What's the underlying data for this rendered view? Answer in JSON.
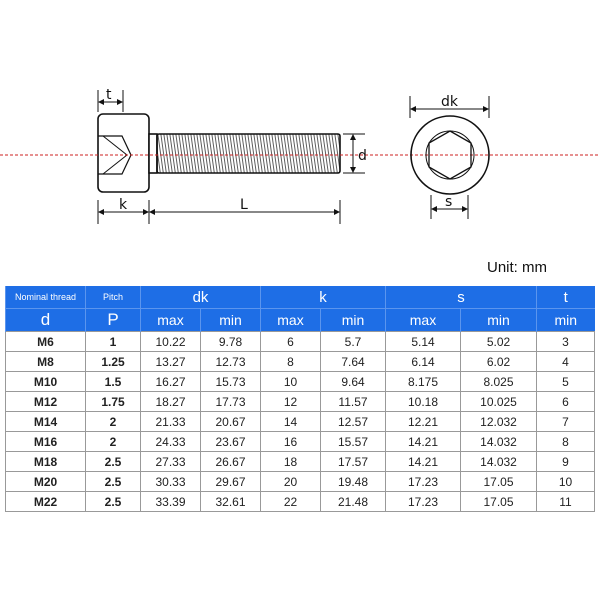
{
  "drawing": {
    "labels": {
      "t": "t",
      "k": "k",
      "L": "L",
      "d": "d",
      "dk": "dk",
      "s": "s"
    },
    "centerline_color": "#cc2222"
  },
  "unit": "Unit: mm",
  "table": {
    "header_color": "#1e6ee6",
    "headers": {
      "nominal": "Nominal thread",
      "d": "d",
      "pitch": "Pitch",
      "P": "P",
      "dk": "dk",
      "k": "k",
      "s": "s",
      "t": "t",
      "max": "max",
      "min": "min"
    },
    "rows": [
      [
        "M6",
        "1",
        "10.22",
        "9.78",
        "6",
        "5.7",
        "5.14",
        "5.02",
        "3"
      ],
      [
        "M8",
        "1.25",
        "13.27",
        "12.73",
        "8",
        "7.64",
        "6.14",
        "6.02",
        "4"
      ],
      [
        "M10",
        "1.5",
        "16.27",
        "15.73",
        "10",
        "9.64",
        "8.175",
        "8.025",
        "5"
      ],
      [
        "M12",
        "1.75",
        "18.27",
        "17.73",
        "12",
        "11.57",
        "10.18",
        "10.025",
        "6"
      ],
      [
        "M14",
        "2",
        "21.33",
        "20.67",
        "14",
        "12.57",
        "12.21",
        "12.032",
        "7"
      ],
      [
        "M16",
        "2",
        "24.33",
        "23.67",
        "16",
        "15.57",
        "14.21",
        "14.032",
        "8"
      ],
      [
        "M18",
        "2.5",
        "27.33",
        "26.67",
        "18",
        "17.57",
        "14.21",
        "14.032",
        "9"
      ],
      [
        "M20",
        "2.5",
        "30.33",
        "29.67",
        "20",
        "19.48",
        "17.23",
        "17.05",
        "10"
      ],
      [
        "M22",
        "2.5",
        "33.39",
        "32.61",
        "22",
        "21.48",
        "17.23",
        "17.05",
        "11"
      ]
    ]
  }
}
